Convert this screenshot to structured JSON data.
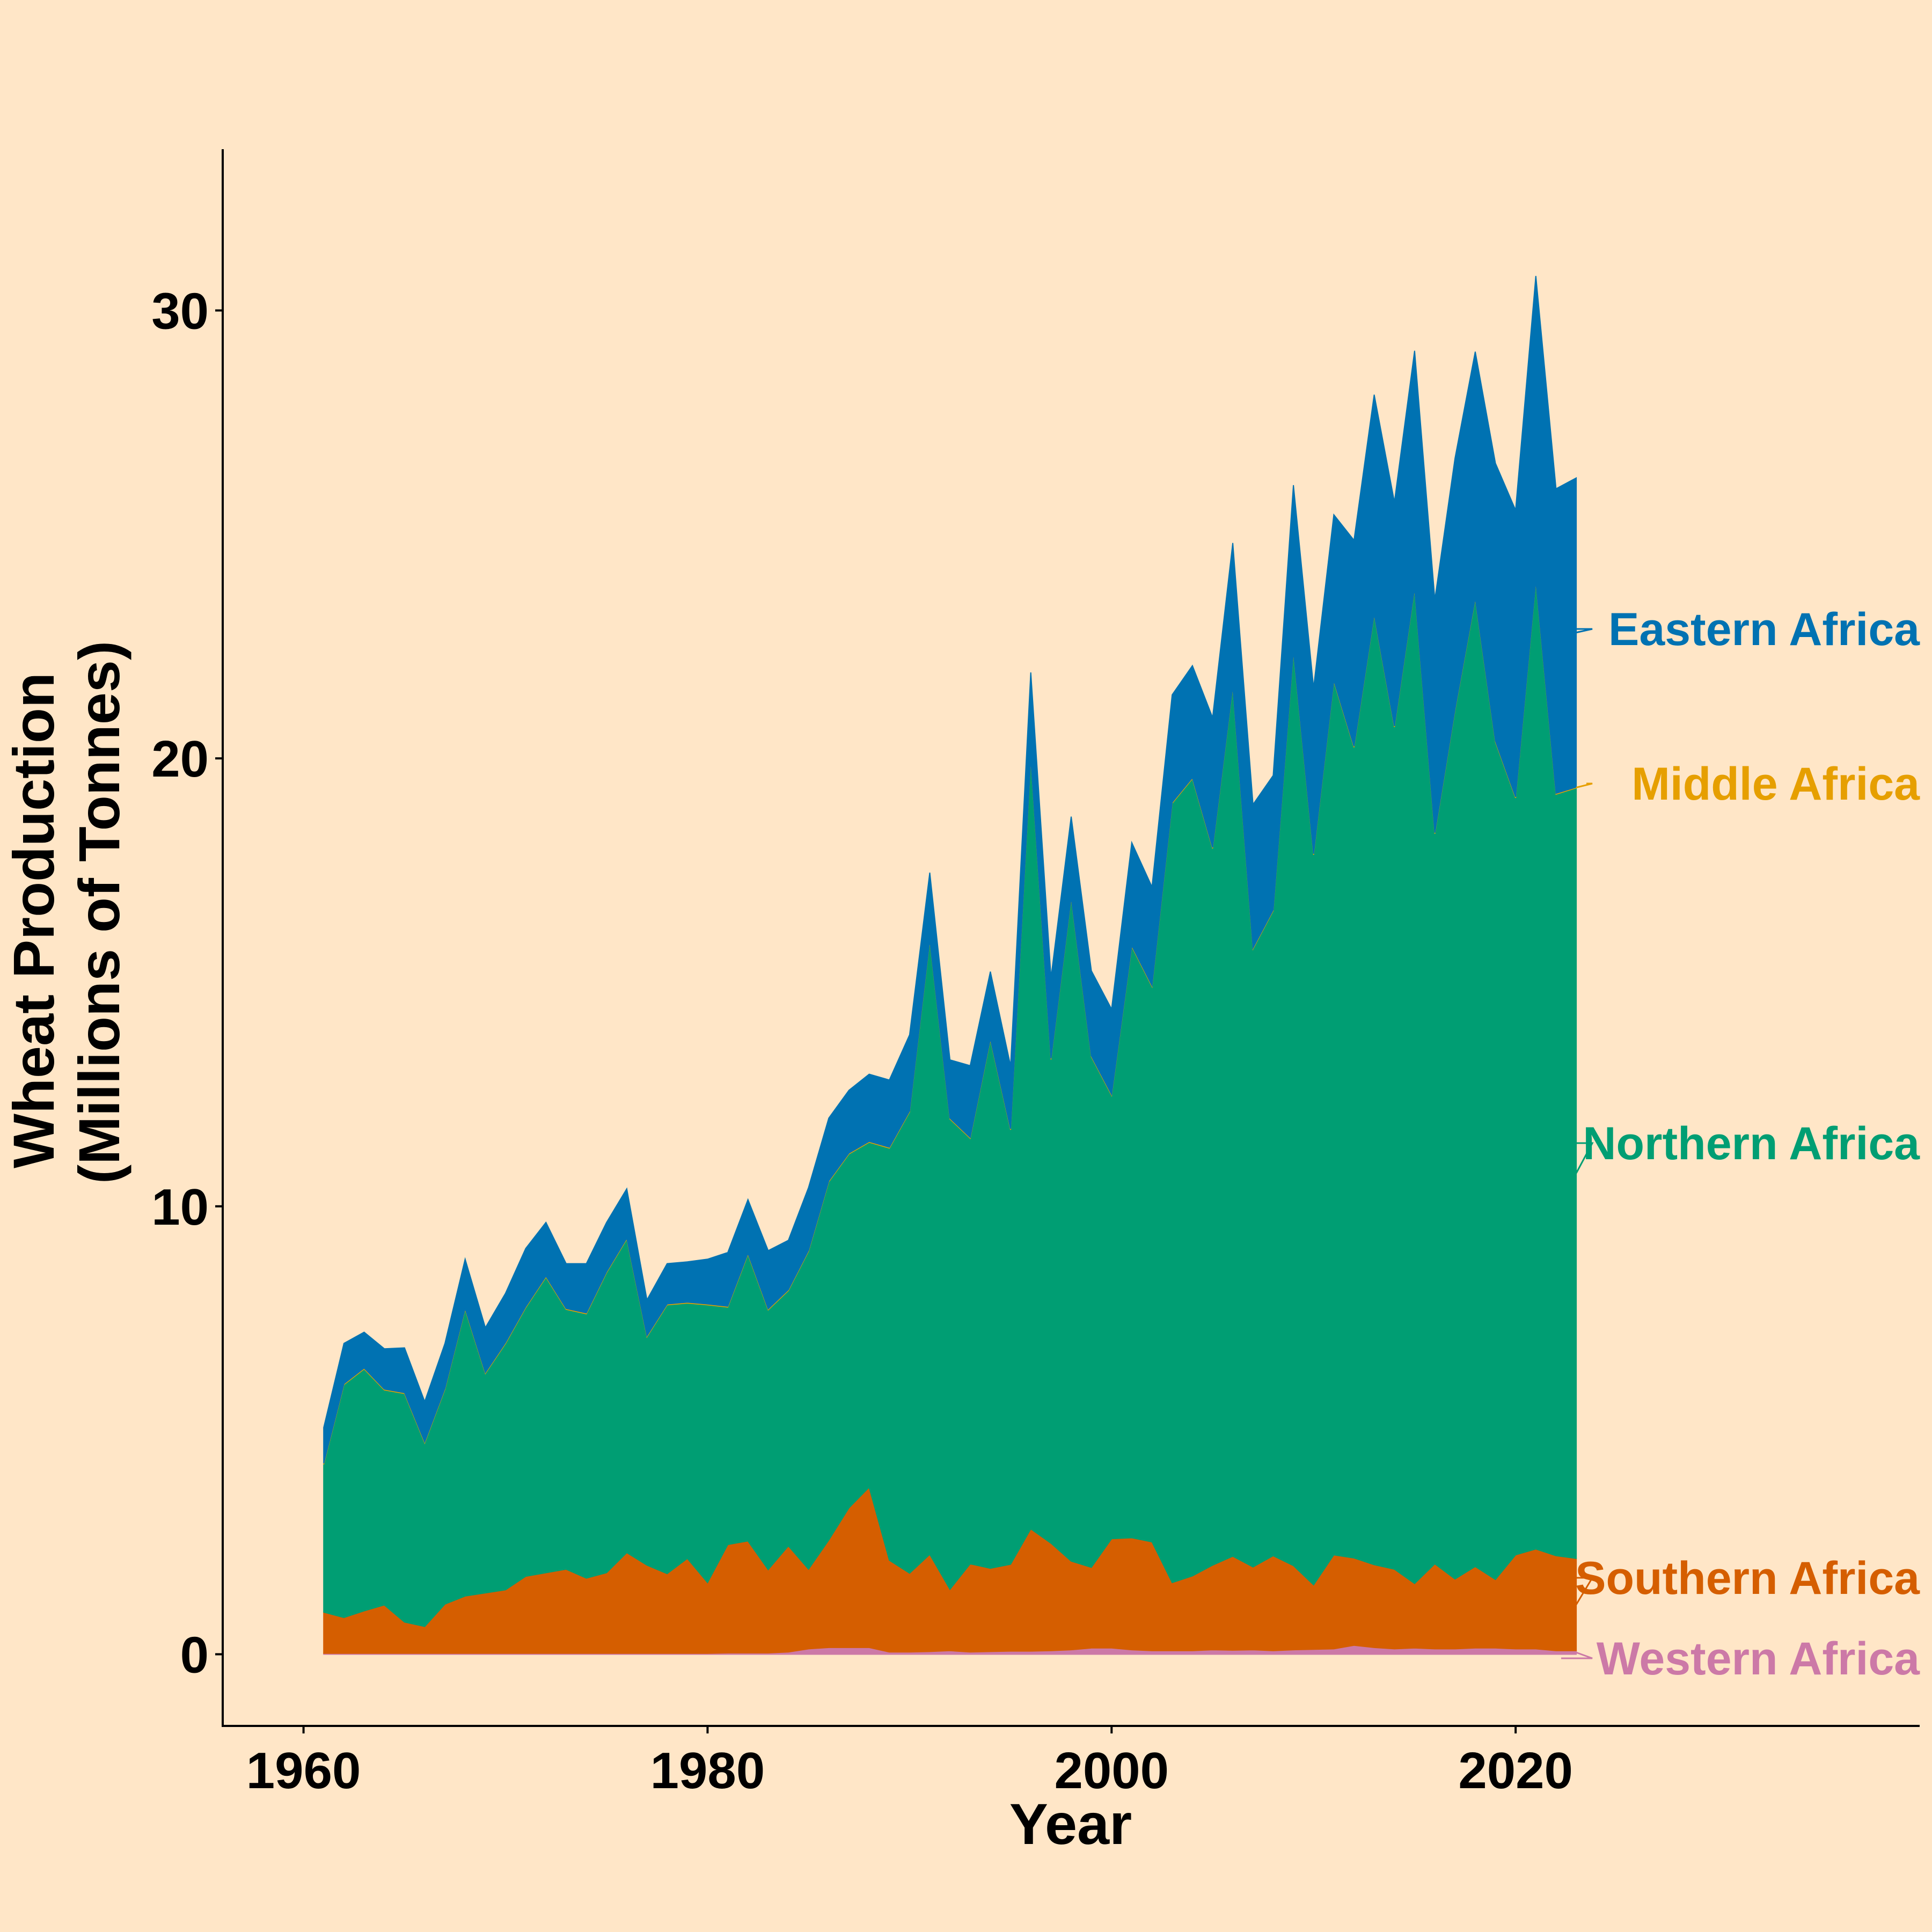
{
  "chart_data": {
    "type": "area",
    "stacked": true,
    "xlabel": "Year",
    "ylabel": [
      "Wheat Production",
      "(Millions of Tonnes)"
    ],
    "xlim": [
      1956,
      2040
    ],
    "ylim": [
      -1.6,
      33.6
    ],
    "x_ticks": [
      1960,
      1980,
      2000,
      2020
    ],
    "y_ticks": [
      0,
      10,
      20,
      30
    ],
    "x": [
      1961,
      1962,
      1963,
      1964,
      1965,
      1966,
      1967,
      1968,
      1969,
      1970,
      1971,
      1972,
      1973,
      1974,
      1975,
      1976,
      1977,
      1978,
      1979,
      1980,
      1981,
      1982,
      1983,
      1984,
      1985,
      1986,
      1987,
      1988,
      1989,
      1990,
      1991,
      1992,
      1993,
      1994,
      1995,
      1996,
      1997,
      1998,
      1999,
      2000,
      2001,
      2002,
      2003,
      2004,
      2005,
      2006,
      2007,
      2008,
      2009,
      2010,
      2011,
      2012,
      2013,
      2014,
      2015,
      2016,
      2017,
      2018,
      2019,
      2020,
      2021,
      2022,
      2023
    ],
    "series": [
      {
        "name": "Western Africa",
        "color": "#CC79A7",
        "values": [
          0.02,
          0.02,
          0.02,
          0.02,
          0.02,
          0.02,
          0.02,
          0.02,
          0.02,
          0.02,
          0.02,
          0.02,
          0.02,
          0.02,
          0.02,
          0.02,
          0.02,
          0.02,
          0.02,
          0.02,
          0.03,
          0.03,
          0.03,
          0.05,
          0.12,
          0.15,
          0.15,
          0.15,
          0.05,
          0.05,
          0.06,
          0.08,
          0.05,
          0.06,
          0.07,
          0.07,
          0.08,
          0.1,
          0.14,
          0.14,
          0.1,
          0.08,
          0.08,
          0.08,
          0.1,
          0.09,
          0.1,
          0.08,
          0.1,
          0.11,
          0.12,
          0.2,
          0.15,
          0.12,
          0.14,
          0.12,
          0.12,
          0.14,
          0.14,
          0.12,
          0.12,
          0.08,
          0.08
        ]
      },
      {
        "name": "Southern Africa",
        "color": "#D55E00",
        "values": [
          0.92,
          0.8,
          0.95,
          1.08,
          0.7,
          0.6,
          1.1,
          1.28,
          1.35,
          1.42,
          1.72,
          1.8,
          1.88,
          1.68,
          1.8,
          2.25,
          1.97,
          1.78,
          2.12,
          1.58,
          2.42,
          2.5,
          1.86,
          2.37,
          1.78,
          2.4,
          3.12,
          3.58,
          2.05,
          1.76,
          2.17,
          1.37,
          1.97,
          1.86,
          1.94,
          2.73,
          2.4,
          1.98,
          1.8,
          2.44,
          2.5,
          2.43,
          1.52,
          1.67,
          1.89,
          2.1,
          1.85,
          2.12,
          1.88,
          1.44,
          2.1,
          1.95,
          1.85,
          1.78,
          1.44,
          1.9,
          1.56,
          1.82,
          1.53,
          2.1,
          2.23,
          2.12,
          2.06
        ]
      },
      {
        "name": "Northern Africa",
        "color": "#009E73",
        "values": [
          3.3,
          5.2,
          5.4,
          4.8,
          5.1,
          4.1,
          4.8,
          6.4,
          4.9,
          5.5,
          6.0,
          6.6,
          5.8,
          5.9,
          6.7,
          7.0,
          5.1,
          6.0,
          5.7,
          6.2,
          5.3,
          6.4,
          5.8,
          5.7,
          7.1,
          8.0,
          7.9,
          7.7,
          9.2,
          10.3,
          13.7,
          10.5,
          9.5,
          11.8,
          9.7,
          17.2,
          10.8,
          14.8,
          11.4,
          9.9,
          13.2,
          12.4,
          17.4,
          17.8,
          16.0,
          19.4,
          13.8,
          14.4,
          20.4,
          16.3,
          19.5,
          18.1,
          21.2,
          18.8,
          22.2,
          16.3,
          19.4,
          21.6,
          18.7,
          16.9,
          21.6,
          17.0,
          17.2
        ]
      },
      {
        "name": "Middle Africa",
        "color": "#E69F00",
        "values": [
          0.02,
          0.02,
          0.02,
          0.02,
          0.02,
          0.02,
          0.02,
          0.02,
          0.02,
          0.02,
          0.02,
          0.02,
          0.02,
          0.02,
          0.02,
          0.02,
          0.02,
          0.02,
          0.02,
          0.02,
          0.02,
          0.02,
          0.02,
          0.02,
          0.02,
          0.02,
          0.02,
          0.02,
          0.02,
          0.02,
          0.02,
          0.02,
          0.02,
          0.02,
          0.02,
          0.02,
          0.02,
          0.02,
          0.02,
          0.02,
          0.02,
          0.02,
          0.02,
          0.02,
          0.02,
          0.02,
          0.02,
          0.02,
          0.02,
          0.02,
          0.02,
          0.02,
          0.02,
          0.02,
          0.02,
          0.02,
          0.02,
          0.02,
          0.02,
          0.02,
          0.02,
          0.02,
          0.02
        ]
      },
      {
        "name": "Eastern Africa",
        "color": "#0072B2",
        "values": [
          0.8,
          0.9,
          0.8,
          0.9,
          1.0,
          0.9,
          1.0,
          1.1,
          1.0,
          1.1,
          1.3,
          1.2,
          1.0,
          1.1,
          1.1,
          1.1,
          0.8,
          0.9,
          0.9,
          1.0,
          1.2,
          1.2,
          1.3,
          1.1,
          1.4,
          1.4,
          1.4,
          1.5,
          1.5,
          1.7,
          1.5,
          1.3,
          1.6,
          1.5,
          1.4,
          1.9,
          1.8,
          1.8,
          1.9,
          1.9,
          2.3,
          2.2,
          2.4,
          2.5,
          2.9,
          3.2,
          3.2,
          3.0,
          3.7,
          3.7,
          3.7,
          4.6,
          4.9,
          5.0,
          5.3,
          5.2,
          5.6,
          5.5,
          6.2,
          6.4,
          6.8,
          6.8,
          6.9
        ]
      }
    ]
  }
}
